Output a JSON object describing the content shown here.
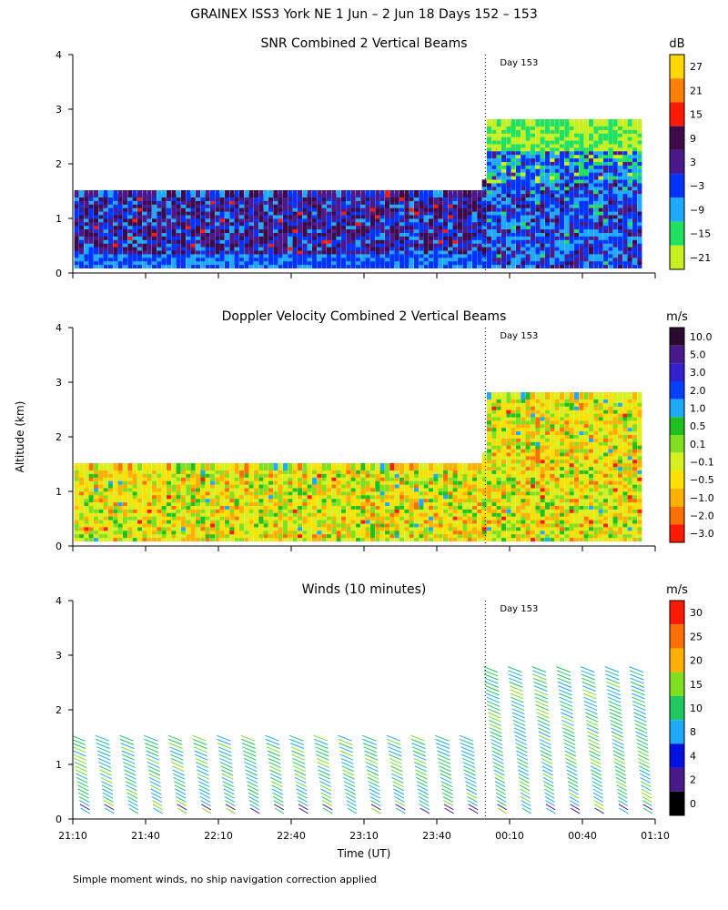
{
  "figure": {
    "title": "GRAINEX ISS3 York NE   1 Jun –  2 Jun 18 Days 152 – 153",
    "footnote": "Simple moment winds, no ship navigation correction applied",
    "y_axis_label": "Altitude (km)",
    "x_axis_label": "Time (UT)"
  },
  "chart_data": [
    {
      "type": "heatmap",
      "title": "SNR Combined 2 Vertical Beams",
      "colorbar_unit": "dB",
      "colorbar_ticks": [
        "27",
        "21",
        "15",
        "9",
        "3",
        "−3",
        "−9",
        "−15",
        "−21"
      ],
      "colorbar_colors": [
        "#ffd700",
        "#ff8000",
        "#ff1a00",
        "#3d0a4a",
        "#4a1a8c",
        "#0033ff",
        "#1eaaff",
        "#22e060",
        "#c8f020"
      ],
      "marker_label": "Day 153",
      "xlabel": "",
      "ylabel": "Altitude (km)",
      "ylim": [
        0,
        4
      ],
      "y_ticks": [
        "0",
        "1",
        "2",
        "3",
        "4"
      ],
      "x_ticks": [
        "21:10",
        "21:40",
        "22:10",
        "22:40",
        "23:10",
        "23:40",
        "00:10",
        "00:40",
        "01:10"
      ],
      "data_top_km_day152": 1.4,
      "data_top_km_day153": 2.7
    },
    {
      "type": "heatmap",
      "title": "Doppler Velocity Combined 2 Vertical Beams",
      "colorbar_unit": "m/s",
      "colorbar_ticks": [
        "10.0",
        "5.0",
        "3.0",
        "2.0",
        "1.0",
        "0.5",
        "0.1",
        "−0.1",
        "−0.5",
        "−1.0",
        "−2.0",
        "−3.0"
      ],
      "colorbar_colors": [
        "#2a0a2e",
        "#4a1a8c",
        "#3020d0",
        "#0040ff",
        "#1eaaff",
        "#20c020",
        "#80e020",
        "#d8f020",
        "#ffe000",
        "#ffb000",
        "#ff7000",
        "#ff1a00"
      ],
      "marker_label": "Day 153",
      "xlabel": "",
      "ylabel": "Altitude (km)",
      "ylim": [
        0,
        4
      ],
      "y_ticks": [
        "0",
        "1",
        "2",
        "3",
        "4"
      ],
      "x_ticks": [
        "21:10",
        "21:40",
        "22:10",
        "22:40",
        "23:10",
        "23:40",
        "00:10",
        "00:40",
        "01:10"
      ]
    },
    {
      "type": "scatter",
      "title": "Winds (10 minutes)",
      "colorbar_unit": "m/s",
      "colorbar_ticks": [
        "30",
        "25",
        "20",
        "15",
        "10",
        "8",
        "4",
        "2",
        "0"
      ],
      "colorbar_colors": [
        "#ff1a00",
        "#ff7000",
        "#ffb000",
        "#80e020",
        "#20c860",
        "#1eaaff",
        "#0010e0",
        "#4a1a8c",
        "#000000"
      ],
      "marker_label": "Day 153",
      "xlabel": "Time (UT)",
      "ylabel": "Altitude (km)",
      "ylim": [
        0,
        4
      ],
      "y_ticks": [
        "0",
        "1",
        "2",
        "3",
        "4"
      ],
      "x_ticks": [
        "21:10",
        "21:40",
        "22:10",
        "22:40",
        "23:10",
        "23:40",
        "00:10",
        "00:40",
        "01:10"
      ],
      "series": [
        {
          "x": [
            "21:15",
            "21:25",
            "21:35",
            "21:45",
            "21:55",
            "22:05",
            "22:15",
            "22:25",
            "22:35",
            "22:45",
            "22:55",
            "23:05",
            "23:15",
            "23:25",
            "23:35",
            "23:45",
            "23:55"
          ],
          "top_km": 1.45
        },
        {
          "x": [
            "00:05",
            "00:15",
            "00:25",
            "00:35",
            "00:45",
            "00:55",
            "01:05"
          ],
          "top_km": 2.7
        }
      ]
    }
  ]
}
